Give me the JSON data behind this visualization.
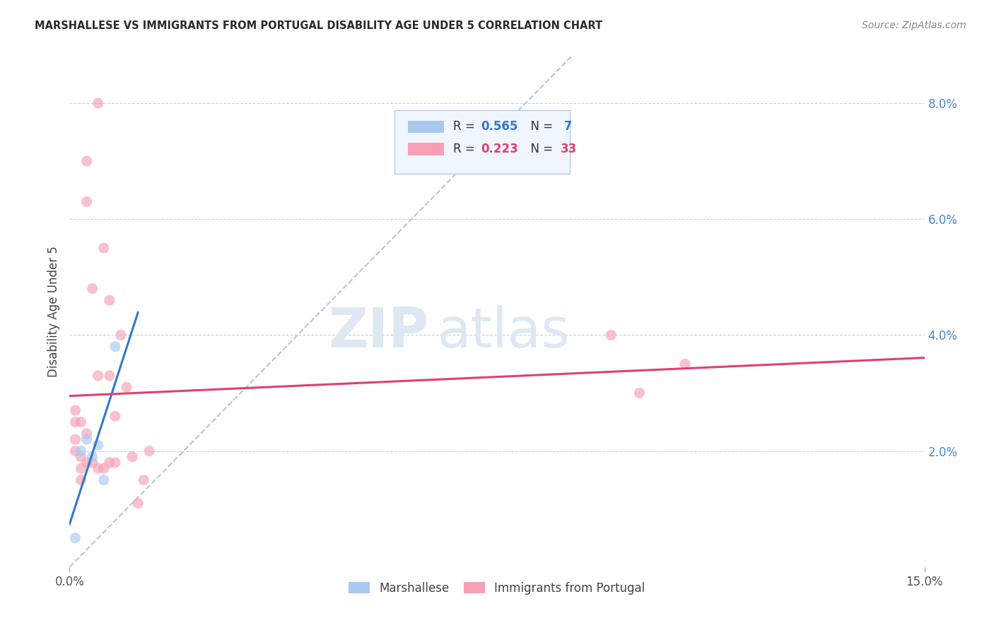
{
  "title": "MARSHALLESE VS IMMIGRANTS FROM PORTUGAL DISABILITY AGE UNDER 5 CORRELATION CHART",
  "source": "Source: ZipAtlas.com",
  "ylabel": "Disability Age Under 5",
  "xlim": [
    0.0,
    0.15
  ],
  "ylim": [
    0.0,
    0.088
  ],
  "ytick_vals": [
    0.02,
    0.04,
    0.06,
    0.08
  ],
  "ytick_labels": [
    "2.0%",
    "4.0%",
    "6.0%",
    "8.0%"
  ],
  "xtick_vals": [
    0.0,
    0.15
  ],
  "xtick_labels": [
    "0.0%",
    "15.0%"
  ],
  "grid_color": "#d0d0d0",
  "bg_color": "#ffffff",
  "marsh_dot_color": "#a8c8f0",
  "port_dot_color": "#f5a0b5",
  "marsh_line_color": "#3377cc",
  "port_line_color": "#e04070",
  "diag_color": "#aabbd4",
  "R_marsh": 0.565,
  "N_marsh": 7,
  "R_port": 0.223,
  "N_port": 33,
  "marsh_x": [
    0.001,
    0.002,
    0.003,
    0.004,
    0.005,
    0.006,
    0.008
  ],
  "marsh_y": [
    0.005,
    0.02,
    0.022,
    0.019,
    0.021,
    0.015,
    0.038
  ],
  "port_x": [
    0.001,
    0.001,
    0.001,
    0.001,
    0.002,
    0.002,
    0.002,
    0.002,
    0.003,
    0.003,
    0.003,
    0.003,
    0.004,
    0.004,
    0.005,
    0.005,
    0.005,
    0.006,
    0.006,
    0.007,
    0.007,
    0.007,
    0.008,
    0.008,
    0.009,
    0.01,
    0.011,
    0.012,
    0.013,
    0.014,
    0.095,
    0.1,
    0.108
  ],
  "port_y": [
    0.02,
    0.022,
    0.025,
    0.027,
    0.015,
    0.017,
    0.019,
    0.025,
    0.018,
    0.023,
    0.063,
    0.07,
    0.018,
    0.048,
    0.017,
    0.033,
    0.08,
    0.017,
    0.055,
    0.018,
    0.033,
    0.046,
    0.018,
    0.026,
    0.04,
    0.031,
    0.019,
    0.011,
    0.015,
    0.02,
    0.04,
    0.03,
    0.035
  ],
  "watermark_text": "ZIPatlas",
  "ms": 120,
  "alpha": 0.65
}
